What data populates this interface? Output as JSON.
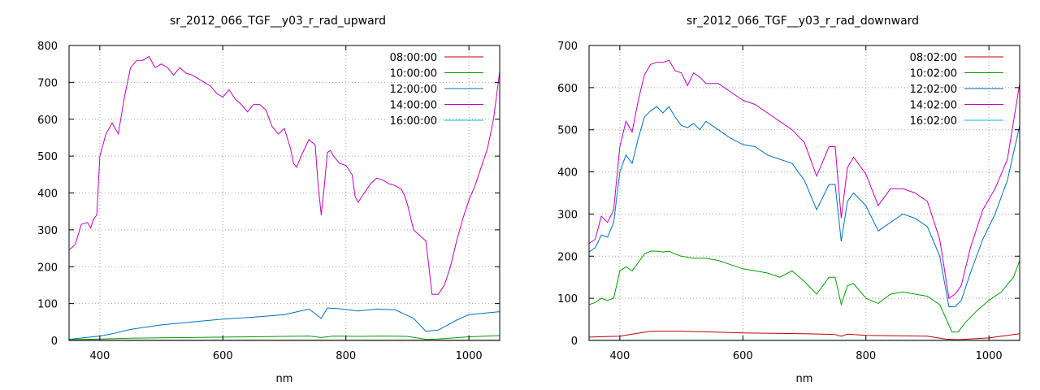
{
  "chart_data": [
    {
      "type": "line",
      "title": "sr_2012_066_TGF__y03_r_rad_upward",
      "xlabel": "nm",
      "ylabel": "",
      "xlim": [
        350,
        1050
      ],
      "ylim": [
        0,
        800
      ],
      "xticks": [
        400,
        600,
        800,
        1000
      ],
      "yticks": [
        0,
        100,
        200,
        300,
        400,
        500,
        600,
        700,
        800
      ],
      "grid": true,
      "legend_position": "top-right",
      "series": [
        {
          "name": "08:00:00",
          "color": "#c00000",
          "x": [
            350,
            1050
          ],
          "y": [
            0.5,
            0.5
          ]
        },
        {
          "name": "10:00:00",
          "color": "#00a000",
          "x": [
            350,
            400,
            450,
            500,
            550,
            600,
            650,
            700,
            740,
            760,
            780,
            820,
            860,
            900,
            930,
            950,
            1000,
            1050
          ],
          "y": [
            2,
            4,
            6,
            7,
            8,
            9,
            10,
            11,
            12,
            8,
            12,
            11,
            12,
            11,
            3,
            4,
            10,
            13
          ]
        },
        {
          "name": "12:00:00",
          "color": "#0070c0",
          "x": [
            350,
            400,
            420,
            450,
            500,
            550,
            600,
            650,
            700,
            740,
            760,
            770,
            790,
            820,
            850,
            880,
            910,
            930,
            950,
            980,
            1000,
            1050
          ],
          "y": [
            3,
            12,
            18,
            30,
            42,
            50,
            58,
            63,
            70,
            85,
            60,
            88,
            86,
            80,
            85,
            83,
            60,
            25,
            28,
            55,
            70,
            78
          ]
        },
        {
          "name": "14:00:00",
          "color": "#c000c0",
          "x": [
            350,
            360,
            370,
            380,
            385,
            390,
            395,
            400,
            410,
            420,
            430,
            440,
            450,
            460,
            470,
            480,
            490,
            500,
            510,
            520,
            530,
            540,
            550,
            560,
            570,
            580,
            590,
            600,
            610,
            620,
            630,
            640,
            650,
            660,
            670,
            680,
            690,
            700,
            710,
            715,
            720,
            730,
            740,
            750,
            755,
            760,
            765,
            770,
            775,
            780,
            790,
            800,
            810,
            815,
            820,
            830,
            840,
            850,
            860,
            870,
            880,
            890,
            895,
            900,
            910,
            920,
            930,
            935,
            940,
            950,
            960,
            970,
            980,
            990,
            1000,
            1010,
            1020,
            1030,
            1040,
            1050
          ],
          "y": [
            245,
            260,
            315,
            320,
            305,
            330,
            340,
            500,
            560,
            590,
            560,
            660,
            740,
            760,
            760,
            770,
            740,
            750,
            740,
            720,
            740,
            725,
            720,
            710,
            700,
            690,
            670,
            660,
            680,
            655,
            640,
            620,
            640,
            640,
            625,
            580,
            560,
            575,
            520,
            480,
            470,
            510,
            545,
            530,
            420,
            340,
            420,
            510,
            515,
            500,
            480,
            475,
            450,
            390,
            375,
            400,
            425,
            440,
            435,
            425,
            420,
            410,
            395,
            370,
            300,
            285,
            270,
            200,
            125,
            125,
            150,
            200,
            270,
            330,
            380,
            420,
            470,
            520,
            600,
            730
          ]
        },
        {
          "name": "16:00:00",
          "color": "#00c0c0",
          "x": [
            350,
            1050
          ],
          "y": [
            0.3,
            0.3
          ]
        }
      ]
    },
    {
      "type": "line",
      "title": "sr_2012_066_TGF__y03_r_rad_downward",
      "xlabel": "nm",
      "ylabel": "",
      "xlim": [
        350,
        1050
      ],
      "ylim": [
        0,
        700
      ],
      "xticks": [
        400,
        600,
        800,
        1000
      ],
      "yticks": [
        0,
        100,
        200,
        300,
        400,
        500,
        600,
        700
      ],
      "grid": true,
      "legend_position": "top-right",
      "series": [
        {
          "name": "08:02:00",
          "color": "#c00000",
          "x": [
            350,
            400,
            450,
            500,
            550,
            600,
            650,
            700,
            750,
            760,
            770,
            800,
            850,
            900,
            930,
            950,
            1000,
            1050
          ],
          "y": [
            8,
            10,
            22,
            22,
            20,
            18,
            17,
            16,
            14,
            10,
            15,
            12,
            11,
            10,
            3,
            2,
            6,
            16
          ]
        },
        {
          "name": "10:02:00",
          "color": "#00a000",
          "x": [
            350,
            360,
            370,
            380,
            390,
            400,
            410,
            420,
            430,
            440,
            450,
            460,
            470,
            480,
            490,
            500,
            520,
            540,
            560,
            580,
            600,
            620,
            640,
            660,
            680,
            700,
            720,
            740,
            750,
            760,
            770,
            780,
            800,
            820,
            840,
            860,
            880,
            900,
            920,
            940,
            950,
            960,
            980,
            1000,
            1020,
            1040,
            1050
          ],
          "y": [
            85,
            90,
            100,
            95,
            100,
            165,
            175,
            165,
            185,
            205,
            212,
            212,
            210,
            212,
            205,
            200,
            195,
            195,
            190,
            180,
            170,
            165,
            160,
            150,
            165,
            140,
            110,
            150,
            150,
            85,
            130,
            135,
            100,
            88,
            110,
            115,
            110,
            105,
            85,
            20,
            20,
            40,
            70,
            95,
            115,
            150,
            190
          ]
        },
        {
          "name": "12:02:00",
          "color": "#0070c0",
          "x": [
            350,
            360,
            370,
            380,
            390,
            400,
            410,
            420,
            430,
            440,
            450,
            460,
            470,
            480,
            490,
            500,
            510,
            520,
            530,
            540,
            560,
            580,
            600,
            620,
            640,
            660,
            680,
            700,
            720,
            740,
            750,
            760,
            770,
            780,
            800,
            820,
            840,
            860,
            880,
            900,
            920,
            935,
            945,
            955,
            970,
            990,
            1010,
            1030,
            1050
          ],
          "y": [
            210,
            220,
            250,
            245,
            280,
            400,
            440,
            420,
            480,
            530,
            545,
            555,
            540,
            555,
            530,
            510,
            505,
            515,
            500,
            520,
            500,
            480,
            465,
            460,
            440,
            430,
            420,
            380,
            310,
            370,
            370,
            235,
            330,
            350,
            320,
            260,
            280,
            300,
            290,
            270,
            200,
            80,
            80,
            95,
            160,
            240,
            300,
            380,
            510
          ]
        },
        {
          "name": "14:02:00",
          "color": "#c000c0",
          "x": [
            350,
            360,
            370,
            380,
            390,
            400,
            410,
            420,
            430,
            440,
            450,
            460,
            470,
            480,
            490,
            500,
            510,
            520,
            530,
            540,
            560,
            580,
            600,
            620,
            640,
            660,
            680,
            700,
            720,
            740,
            750,
            760,
            770,
            780,
            800,
            820,
            840,
            860,
            880,
            900,
            920,
            935,
            945,
            955,
            970,
            990,
            1010,
            1030,
            1050
          ],
          "y": [
            230,
            240,
            295,
            280,
            310,
            460,
            520,
            495,
            570,
            630,
            655,
            660,
            660,
            665,
            640,
            635,
            605,
            635,
            625,
            610,
            610,
            590,
            570,
            560,
            540,
            520,
            500,
            470,
            390,
            460,
            460,
            290,
            410,
            435,
            395,
            320,
            360,
            360,
            350,
            330,
            240,
            100,
            110,
            130,
            220,
            310,
            360,
            430,
            610
          ]
        },
        {
          "name": "16:02:00",
          "color": "#00c0c0",
          "x": [
            350,
            1050
          ],
          "y": [
            0.3,
            0.3
          ]
        }
      ]
    }
  ]
}
